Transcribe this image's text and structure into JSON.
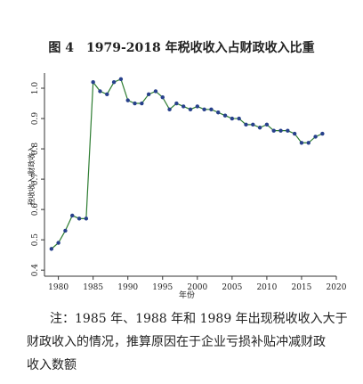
{
  "chart_data": {
    "type": "line",
    "title": "图 4　1979-2018 年税收收入占财政收入比重",
    "x_label": "年份",
    "y_label": "税收收入/财政收入",
    "x": [
      1979,
      1980,
      1981,
      1982,
      1983,
      1984,
      1985,
      1986,
      1987,
      1988,
      1989,
      1990,
      1991,
      1992,
      1993,
      1994,
      1995,
      1996,
      1997,
      1998,
      1999,
      2000,
      2001,
      2002,
      2003,
      2004,
      2005,
      2006,
      2007,
      2008,
      2009,
      2010,
      2011,
      2012,
      2013,
      2014,
      2015,
      2016,
      2017,
      2018
    ],
    "series": [
      {
        "name": "税收收入/财政收入",
        "color": "#27408b",
        "line_color": "#2e7d32",
        "values": [
          0.47,
          0.49,
          0.53,
          0.58,
          0.57,
          0.57,
          1.02,
          0.99,
          0.98,
          1.02,
          1.03,
          0.96,
          0.95,
          0.95,
          0.98,
          0.99,
          0.97,
          0.93,
          0.95,
          0.94,
          0.93,
          0.94,
          0.93,
          0.93,
          0.92,
          0.91,
          0.9,
          0.9,
          0.88,
          0.88,
          0.87,
          0.88,
          0.86,
          0.86,
          0.86,
          0.85,
          0.82,
          0.82,
          0.84,
          0.85
        ]
      }
    ],
    "xlim": [
      1978,
      2020
    ],
    "xticks": [
      1980,
      1985,
      1990,
      1995,
      2000,
      2005,
      2010,
      2015,
      2020
    ],
    "ylim": [
      0.38,
      1.05
    ],
    "yticks": [
      0.4,
      0.5,
      0.6,
      0.7,
      0.8,
      0.9,
      {
        "value": 1,
        "label": "1.0"
      }
    ],
    "grid": false
  },
  "note": [
    "注：1985 年、1988 年和 1989 年出现税收收入大于",
    "财政收入的情况，推算原因在于企业亏损补贴冲减财政",
    "收入数额"
  ]
}
